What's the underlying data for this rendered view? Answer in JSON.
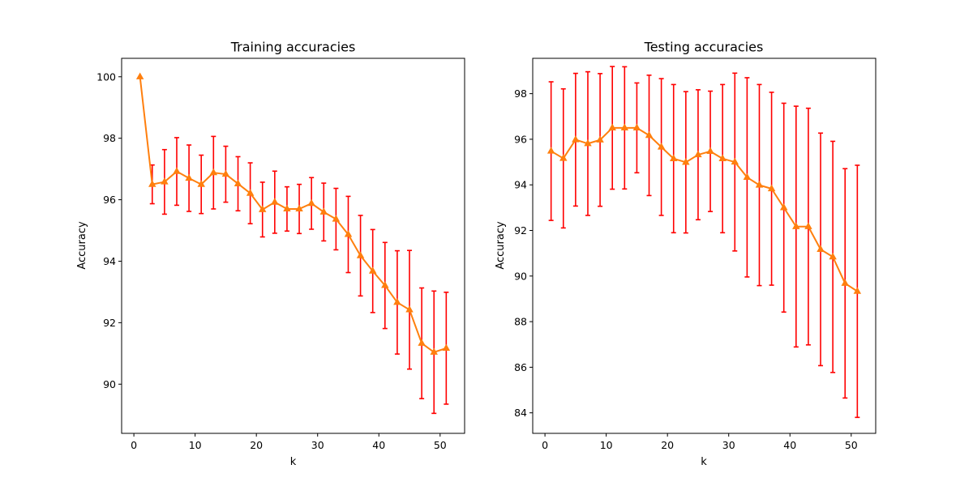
{
  "chart_data": [
    {
      "type": "line",
      "title": "Training accuracies",
      "xlabel": "k",
      "ylabel": "Accuracy",
      "xlim": [
        -2,
        54
      ],
      "ylim": [
        88.4,
        100.6
      ],
      "xticks": [
        0,
        10,
        20,
        30,
        40,
        50
      ],
      "yticks": [
        90,
        92,
        94,
        96,
        98,
        100
      ],
      "grid": false,
      "line_color": "#ff7f0e",
      "error_color": "#ff0000",
      "marker": "triangle",
      "x": [
        1,
        3,
        5,
        7,
        9,
        11,
        13,
        15,
        17,
        19,
        21,
        23,
        25,
        27,
        29,
        31,
        33,
        35,
        37,
        39,
        41,
        43,
        45,
        47,
        49,
        51
      ],
      "y": [
        100,
        96.5,
        96.58,
        96.92,
        96.7,
        96.5,
        96.88,
        96.83,
        96.52,
        96.21,
        95.68,
        95.92,
        95.7,
        95.7,
        95.88,
        95.6,
        95.37,
        94.87,
        94.18,
        93.68,
        93.21,
        92.66,
        92.42,
        91.33,
        91.04,
        91.17
      ],
      "error": [
        0,
        0.63,
        1.05,
        1.1,
        1.08,
        0.95,
        1.18,
        0.91,
        0.88,
        0.99,
        0.89,
        1.01,
        0.72,
        0.8,
        0.84,
        0.94,
        1.0,
        1.24,
        1.31,
        1.35,
        1.4,
        1.68,
        1.93,
        1.8,
        1.99,
        1.82
      ]
    },
    {
      "type": "line",
      "title": "Testing accuracies",
      "xlabel": "k",
      "ylabel": "Accuracy",
      "xlim": [
        -2,
        54
      ],
      "ylim": [
        83.1,
        99.55
      ],
      "xticks": [
        0,
        10,
        20,
        30,
        40,
        50
      ],
      "yticks": [
        84,
        86,
        88,
        90,
        92,
        94,
        96,
        98
      ],
      "grid": false,
      "line_color": "#ff7f0e",
      "error_color": "#ff0000",
      "marker": "triangle",
      "x": [
        1,
        3,
        5,
        7,
        9,
        11,
        13,
        15,
        17,
        19,
        21,
        23,
        25,
        27,
        29,
        31,
        33,
        35,
        37,
        39,
        41,
        43,
        45,
        47,
        49,
        51
      ],
      "y": [
        95.48,
        95.16,
        95.98,
        95.81,
        95.97,
        96.5,
        96.5,
        96.5,
        96.17,
        95.66,
        95.15,
        94.99,
        95.32,
        95.47,
        95.15,
        95.0,
        94.33,
        93.99,
        93.83,
        93.0,
        92.17,
        92.17,
        91.17,
        90.84,
        89.68,
        89.33
      ],
      "error": [
        3.04,
        3.05,
        2.91,
        3.15,
        2.91,
        2.69,
        2.68,
        1.97,
        2.64,
        3.0,
        3.25,
        3.1,
        2.85,
        2.64,
        3.25,
        3.9,
        4.37,
        4.41,
        4.23,
        4.58,
        5.28,
        5.19,
        5.1,
        5.07,
        5.03,
        5.53
      ]
    }
  ]
}
